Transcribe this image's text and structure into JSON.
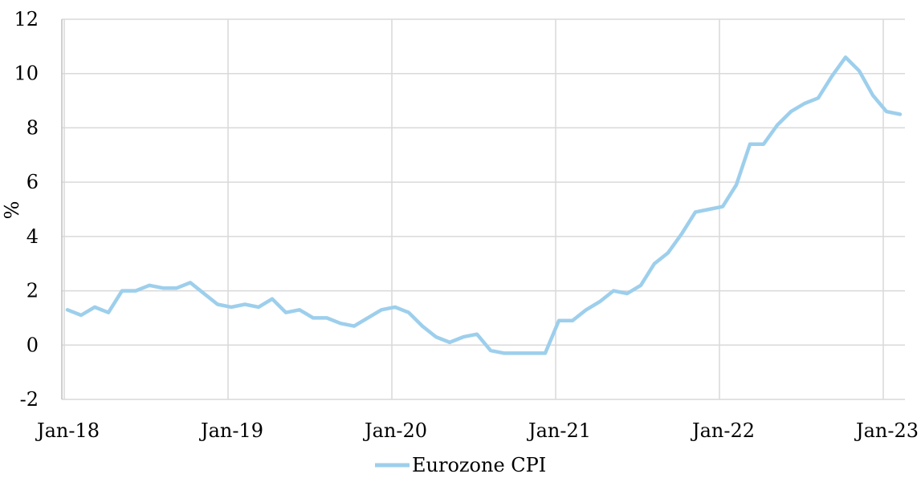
{
  "chart_data": {
    "type": "line",
    "title": "",
    "xlabel": "",
    "ylabel": "%",
    "ylim": [
      -2,
      12
    ],
    "y_ticks": [
      -2,
      0,
      2,
      4,
      6,
      8,
      10,
      12
    ],
    "x_start": "2018-01",
    "x_tick_labels": [
      "Jan-18",
      "Jan-19",
      "Jan-20",
      "Jan-21",
      "Jan-22",
      "Jan-23"
    ],
    "grid": true,
    "legend_position": "bottom",
    "colors": {
      "series": "#9dcfec",
      "grid": "#d9d9d9",
      "axis": "#bfbfbf"
    },
    "series": [
      {
        "name": "Eurozone CPI",
        "values": [
          1.3,
          1.1,
          1.4,
          1.2,
          2.0,
          2.0,
          2.2,
          2.1,
          2.1,
          2.3,
          1.9,
          1.5,
          1.4,
          1.5,
          1.4,
          1.7,
          1.2,
          1.3,
          1.0,
          1.0,
          0.8,
          0.7,
          1.0,
          1.3,
          1.4,
          1.2,
          0.7,
          0.3,
          0.1,
          0.3,
          0.4,
          -0.2,
          -0.3,
          -0.3,
          -0.3,
          -0.3,
          0.9,
          0.9,
          1.3,
          1.6,
          2.0,
          1.9,
          2.2,
          3.0,
          3.4,
          4.1,
          4.9,
          5.0,
          5.1,
          5.9,
          7.4,
          7.4,
          8.1,
          8.6,
          8.9,
          9.1,
          9.9,
          10.6,
          10.1,
          9.2,
          8.6,
          8.5
        ]
      }
    ]
  }
}
